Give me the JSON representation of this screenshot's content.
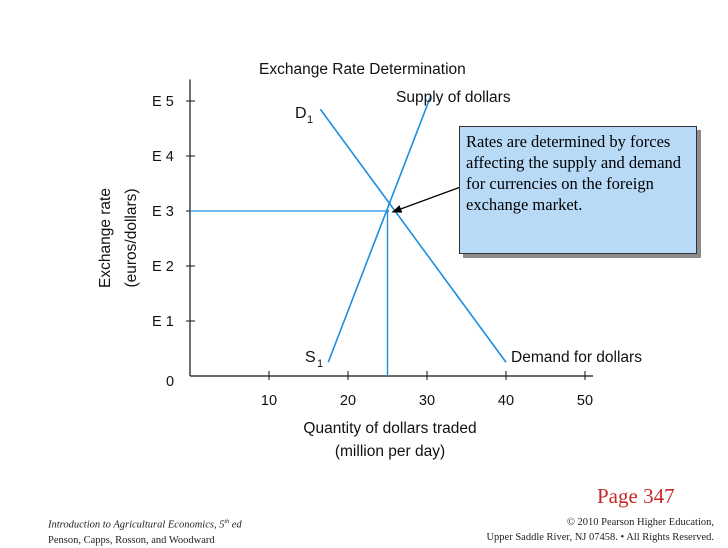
{
  "chart_data": {
    "type": "line",
    "title": "Exchange Rate Determination",
    "xlabel_line1": "Quantity of dollars traded",
    "xlabel_line2": "(million per day)",
    "ylabel_line1": "Exchange rate",
    "ylabel_line2": "(euros/dollars)",
    "x_ticks": [
      10,
      20,
      30,
      40,
      50
    ],
    "y_ticks": [
      {
        "value": 1,
        "label": "E 1"
      },
      {
        "value": 2,
        "label": "E 2"
      },
      {
        "value": 3,
        "label": "E 3"
      },
      {
        "value": 4,
        "label": "E 4"
      },
      {
        "value": 5,
        "label": "E 5"
      }
    ],
    "origin_label": "0",
    "xlim": [
      0,
      50
    ],
    "ylim": [
      0,
      5.3
    ],
    "grid": false,
    "series": [
      {
        "name": "Supply of dollars",
        "curve_label": "S",
        "curve_sub": "1",
        "color": "#1e8ee0",
        "points": [
          [
            17.5,
            0.25
          ],
          [
            30.5,
            5.1
          ]
        ]
      },
      {
        "name": "Demand for dollars",
        "curve_label": "D",
        "curve_sub": "1",
        "color": "#1e8ee0",
        "points": [
          [
            16.5,
            4.85
          ],
          [
            40.0,
            0.25
          ]
        ]
      }
    ],
    "equilibrium": {
      "x": 25.0,
      "y": 3.0
    }
  },
  "callout_text": "Rates are determined by forces affecting the supply and demand for currencies on the foreign exchange market.",
  "page_label": "Page 347",
  "footer": {
    "book_title": "Introduction to Agricultural Economics, 5",
    "edition_sup": "th",
    "edition_suffix": " ed",
    "authors": "Penson, Capps, Rosson, and Woodward",
    "copyright_line1": "© 2010 Pearson Higher Education,",
    "copyright_line2": "Upper Saddle River, NJ 07458. • All Rights Reserved."
  }
}
